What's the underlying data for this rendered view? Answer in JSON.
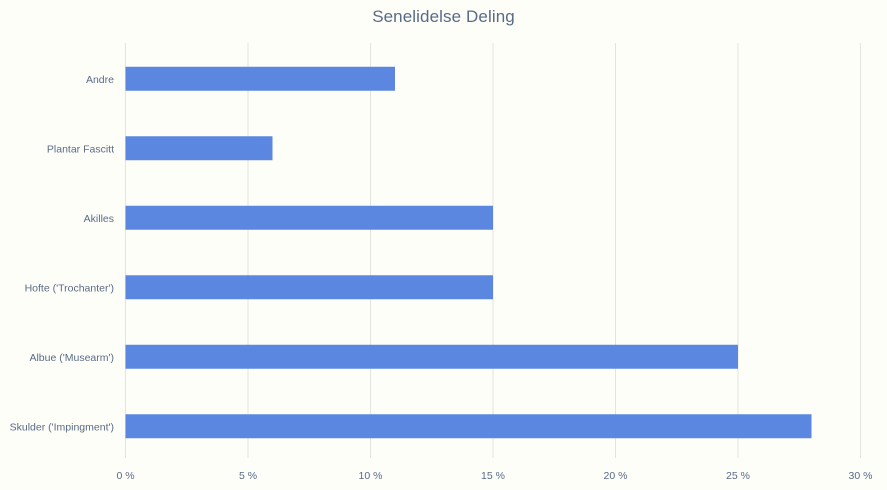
{
  "chart_data": {
    "type": "bar",
    "orientation": "horizontal",
    "title": "Senelidelse Deling",
    "xlabel": "",
    "ylabel": "",
    "categories": [
      "Skulder ('Impingment')",
      "Albue ('Musearm')",
      "Hofte ('Trochanter')",
      "Akilles",
      "Plantar Fascitt",
      "Andre"
    ],
    "values": [
      28,
      25,
      15,
      15,
      6,
      11
    ],
    "xlim": [
      0,
      30
    ],
    "xticks": [
      0,
      5,
      10,
      15,
      20,
      25,
      30
    ],
    "tick_format_suffix": " %",
    "grid": true,
    "legend": "none",
    "colors": {
      "bar": "#5b87e0",
      "grid": "#e3e3df",
      "text": "#596b87",
      "background": "#fefef9"
    }
  }
}
